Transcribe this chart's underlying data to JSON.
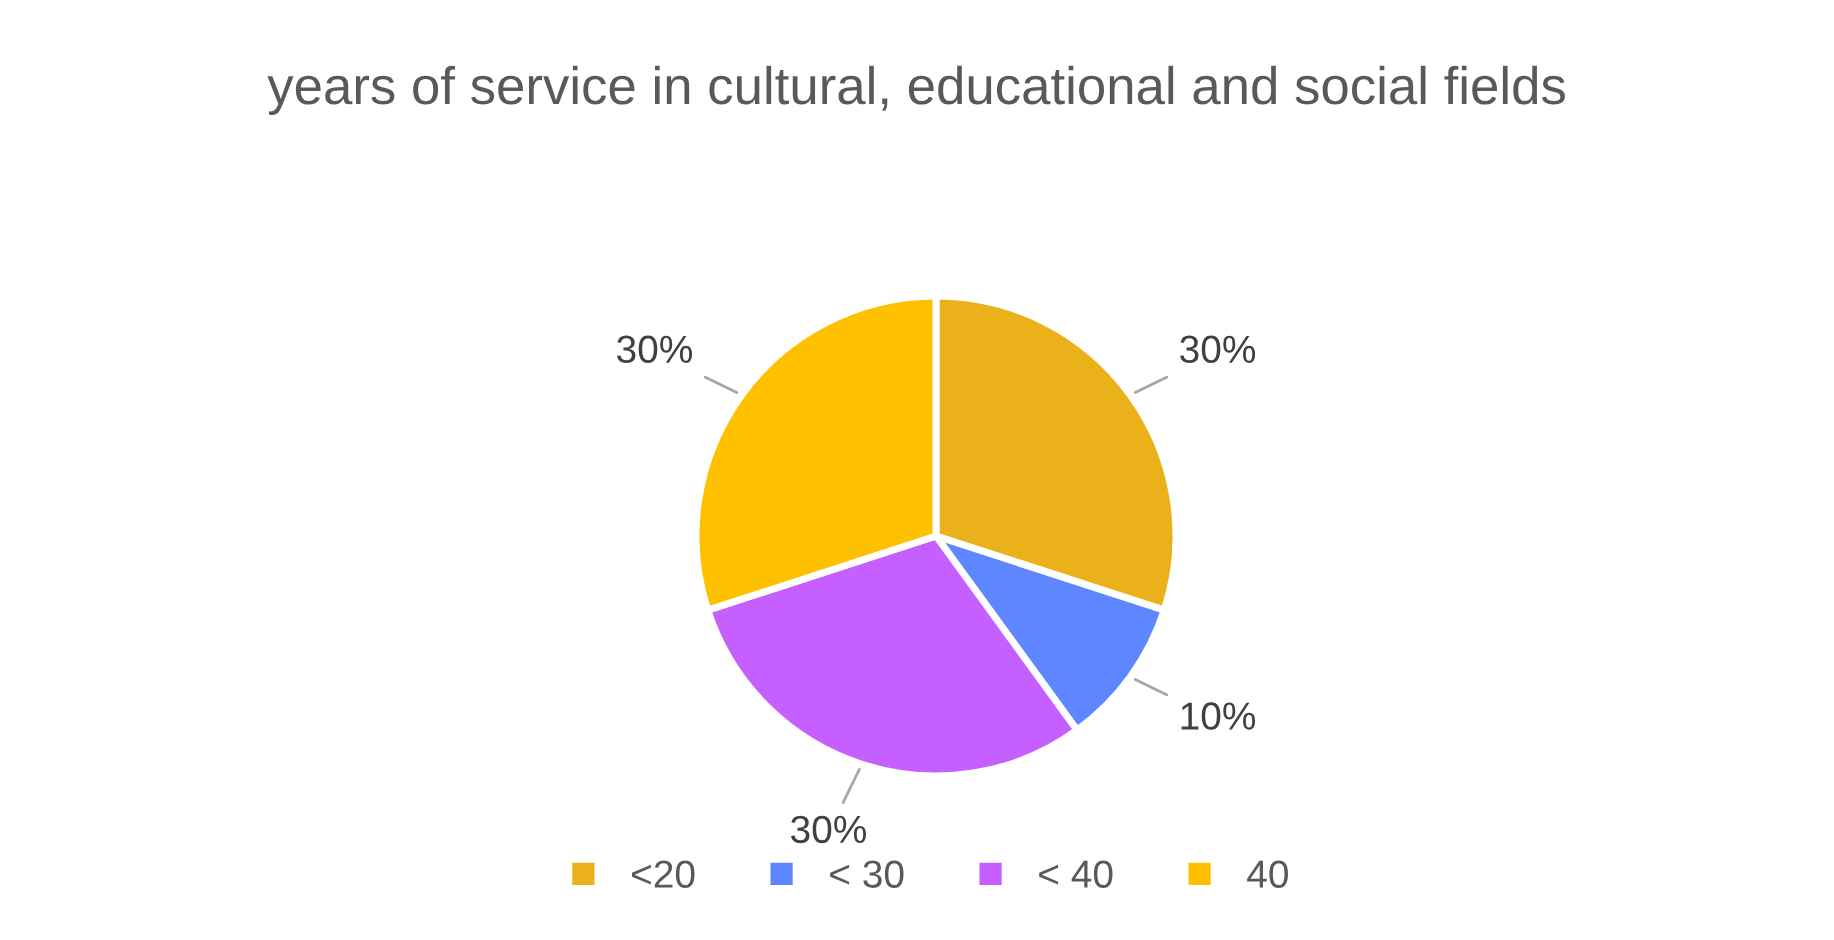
{
  "chart_data": {
    "type": "pie",
    "title": "years of service in cultural, educational and social fields",
    "categories": [
      "<20",
      "< 30",
      "< 40",
      "40"
    ],
    "values": [
      30,
      10,
      30,
      30
    ],
    "value_labels": [
      "30%",
      "10%",
      "30%",
      "30%"
    ],
    "colors": [
      "#ebb11a",
      "#5e87ff",
      "#c55fff",
      "#ffc000"
    ],
    "legend": "bottom"
  }
}
